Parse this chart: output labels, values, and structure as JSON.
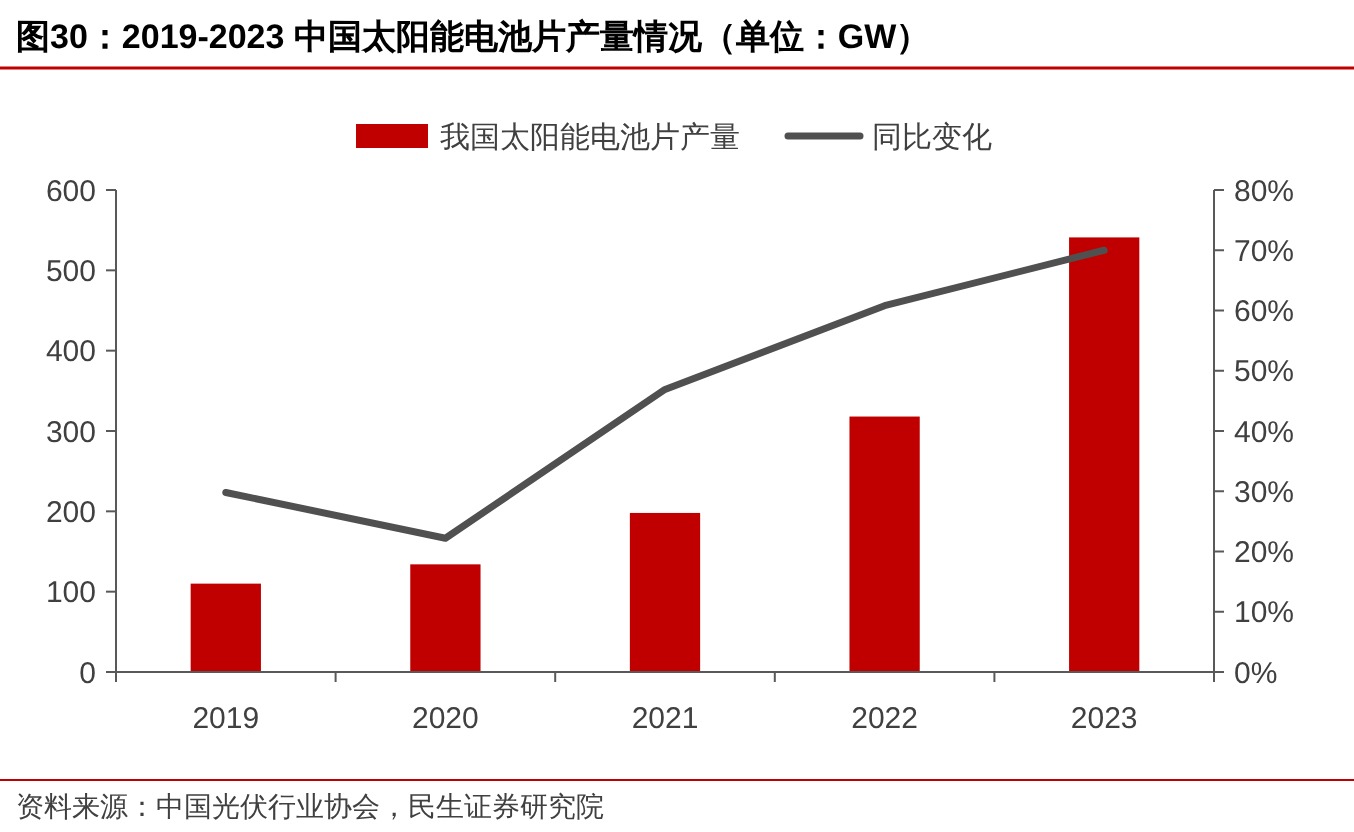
{
  "chart_data": {
    "type": "bar",
    "title": "图30：2019-2023 中国太阳能电池片产量情况（单位：GW）",
    "categories": [
      "2019",
      "2020",
      "2021",
      "2022",
      "2023"
    ],
    "series": [
      {
        "name": "我国太阳能电池片产量",
        "color": "#c00000",
        "values": [
          110,
          134,
          198,
          318,
          541
        ]
      },
      {
        "name": "同比变化",
        "type": "line",
        "axis": "y2",
        "color": "#505050",
        "values": [
          29.8,
          22.2,
          46.9,
          60.8,
          70.0
        ]
      }
    ],
    "ylim": [
      0,
      600
    ],
    "yticks": [
      0,
      100,
      200,
      300,
      400,
      500,
      600
    ],
    "y2lim": [
      0,
      80
    ],
    "y2ticks": [
      {
        "value": 0,
        "label": "0%"
      },
      {
        "value": 10,
        "label": "10%"
      },
      {
        "value": 20,
        "label": "20%"
      },
      {
        "value": 30,
        "label": "30%"
      },
      {
        "value": 40,
        "label": "40%"
      },
      {
        "value": 50,
        "label": "50%"
      },
      {
        "value": 60,
        "label": "60%"
      },
      {
        "value": 70,
        "label": "70%"
      },
      {
        "value": 80,
        "label": "80%"
      }
    ],
    "legend": "top",
    "grid": false,
    "marker": "none",
    "annotations": [
      "资料来源：中国光伏行业协会，民生证券研究院"
    ]
  }
}
